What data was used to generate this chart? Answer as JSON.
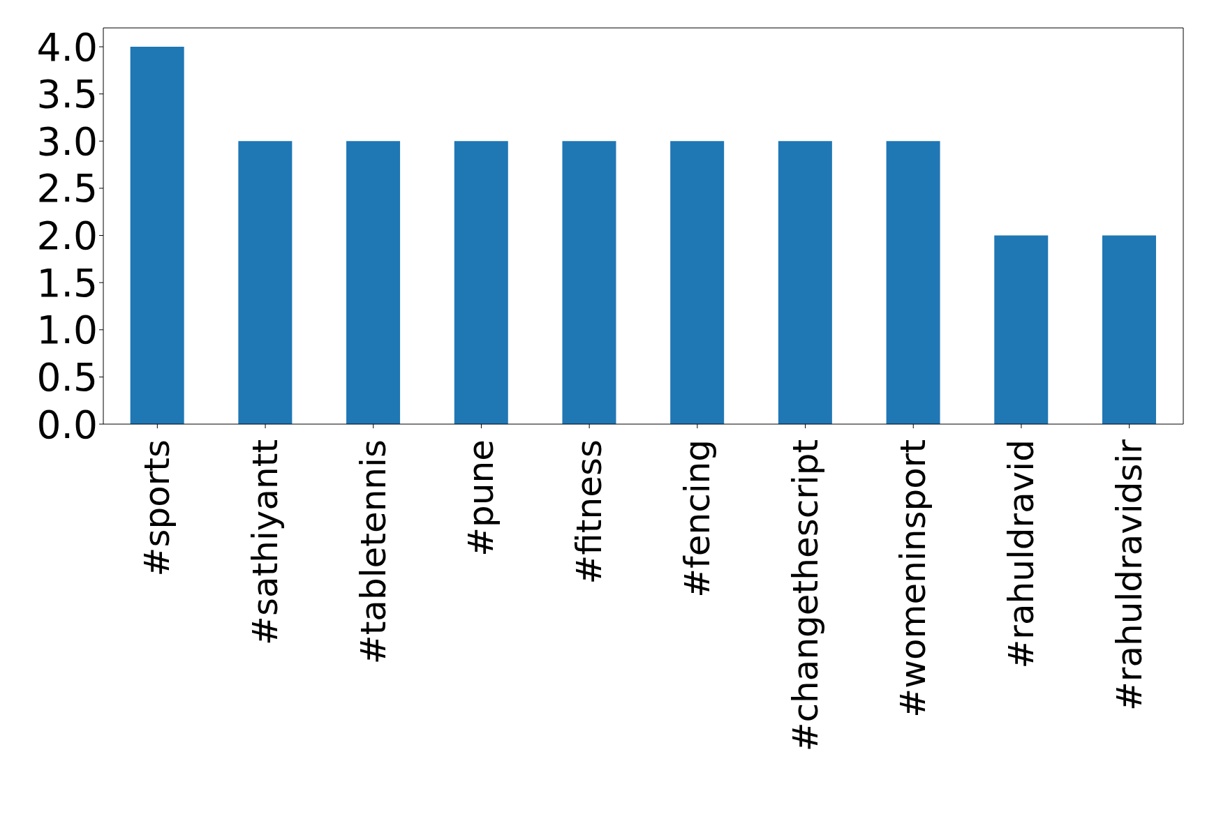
{
  "chart_data": {
    "type": "bar",
    "categories": [
      "#sports",
      "#sathiyantt",
      "#tabletennis",
      "#pune",
      "#fitness",
      "#fencing",
      "#changethescript",
      "#womeninsport",
      "#rahuldravid",
      "#rahuldravidsir"
    ],
    "values": [
      4,
      3,
      3,
      3,
      3,
      3,
      3,
      3,
      2,
      2
    ],
    "color": "#1f77b4",
    "ylim": [
      0,
      4.2
    ],
    "yticks": [
      {
        "value": 0,
        "label": "0.0"
      },
      {
        "value": 0.5,
        "label": "0.5"
      },
      {
        "value": 1,
        "label": "1.0"
      },
      {
        "value": 1.5,
        "label": "1.5"
      },
      {
        "value": 2,
        "label": "2.0"
      },
      {
        "value": 2.5,
        "label": "2.5"
      },
      {
        "value": 3,
        "label": "3.0"
      },
      {
        "value": 3.5,
        "label": "3.5"
      },
      {
        "value": 4,
        "label": "4.0"
      }
    ],
    "grid": false,
    "legend": false
  }
}
